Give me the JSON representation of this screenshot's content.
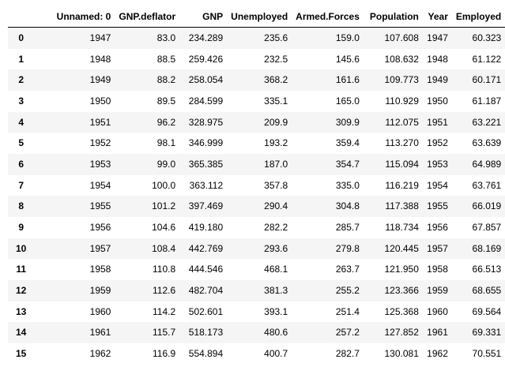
{
  "table": {
    "index_header": "",
    "columns": [
      "Unnamed: 0",
      "GNP.deflator",
      "GNP",
      "Unemployed",
      "Armed.Forces",
      "Population",
      "Year",
      "Employed"
    ],
    "rows": [
      {
        "index": "0",
        "cells": [
          "1947",
          "83.0",
          "234.289",
          "235.6",
          "159.0",
          "107.608",
          "1947",
          "60.323"
        ]
      },
      {
        "index": "1",
        "cells": [
          "1948",
          "88.5",
          "259.426",
          "232.5",
          "145.6",
          "108.632",
          "1948",
          "61.122"
        ]
      },
      {
        "index": "2",
        "cells": [
          "1949",
          "88.2",
          "258.054",
          "368.2",
          "161.6",
          "109.773",
          "1949",
          "60.171"
        ]
      },
      {
        "index": "3",
        "cells": [
          "1950",
          "89.5",
          "284.599",
          "335.1",
          "165.0",
          "110.929",
          "1950",
          "61.187"
        ]
      },
      {
        "index": "4",
        "cells": [
          "1951",
          "96.2",
          "328.975",
          "209.9",
          "309.9",
          "112.075",
          "1951",
          "63.221"
        ]
      },
      {
        "index": "5",
        "cells": [
          "1952",
          "98.1",
          "346.999",
          "193.2",
          "359.4",
          "113.270",
          "1952",
          "63.639"
        ]
      },
      {
        "index": "6",
        "cells": [
          "1953",
          "99.0",
          "365.385",
          "187.0",
          "354.7",
          "115.094",
          "1953",
          "64.989"
        ]
      },
      {
        "index": "7",
        "cells": [
          "1954",
          "100.0",
          "363.112",
          "357.8",
          "335.0",
          "116.219",
          "1954",
          "63.761"
        ]
      },
      {
        "index": "8",
        "cells": [
          "1955",
          "101.2",
          "397.469",
          "290.4",
          "304.8",
          "117.388",
          "1955",
          "66.019"
        ]
      },
      {
        "index": "9",
        "cells": [
          "1956",
          "104.6",
          "419.180",
          "282.2",
          "285.7",
          "118.734",
          "1956",
          "67.857"
        ]
      },
      {
        "index": "10",
        "cells": [
          "1957",
          "108.4",
          "442.769",
          "293.6",
          "279.8",
          "120.445",
          "1957",
          "68.169"
        ]
      },
      {
        "index": "11",
        "cells": [
          "1958",
          "110.8",
          "444.546",
          "468.1",
          "263.7",
          "121.950",
          "1958",
          "66.513"
        ]
      },
      {
        "index": "12",
        "cells": [
          "1959",
          "112.6",
          "482.704",
          "381.3",
          "255.2",
          "123.366",
          "1959",
          "68.655"
        ]
      },
      {
        "index": "13",
        "cells": [
          "1960",
          "114.2",
          "502.601",
          "393.1",
          "251.4",
          "125.368",
          "1960",
          "69.564"
        ]
      },
      {
        "index": "14",
        "cells": [
          "1961",
          "115.7",
          "518.173",
          "480.6",
          "257.2",
          "127.852",
          "1961",
          "69.331"
        ]
      },
      {
        "index": "15",
        "cells": [
          "1962",
          "116.9",
          "554.894",
          "400.7",
          "282.7",
          "130.081",
          "1962",
          "70.551"
        ]
      }
    ]
  }
}
